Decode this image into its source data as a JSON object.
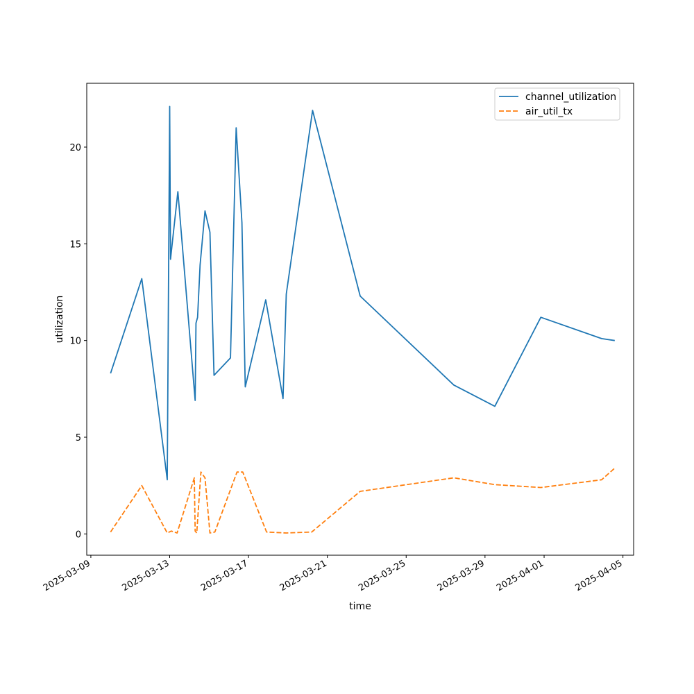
{
  "chart_data": {
    "type": "line",
    "title": "",
    "xlabel": "time",
    "ylabel": "utilization",
    "xlim": [
      "2025-03-08T19:00",
      "2025-04-05T13:00"
    ],
    "ylim": [
      -1.1,
      23.3
    ],
    "x_ticks": [
      "2025-03-09",
      "2025-03-13",
      "2025-03-17",
      "2025-03-21",
      "2025-03-25",
      "2025-03-29",
      "2025-04-01",
      "2025-04-05"
    ],
    "y_ticks": [
      0,
      5,
      10,
      15,
      20
    ],
    "grid": false,
    "legend_position": "upper-right",
    "series": [
      {
        "name": "channel_utilization",
        "color": "#1f77b4",
        "dash": "solid",
        "points": [
          [
            "2025-03-10T00:00",
            8.3
          ],
          [
            "2025-03-11T14:00",
            13.2
          ],
          [
            "2025-03-12T21:00",
            2.8
          ],
          [
            "2025-03-13T00:00",
            22.1
          ],
          [
            "2025-03-13T01:00",
            14.2
          ],
          [
            "2025-03-13T10:00",
            17.7
          ],
          [
            "2025-03-14T07:00",
            6.9
          ],
          [
            "2025-03-14T08:00",
            10.9
          ],
          [
            "2025-03-14T10:00",
            11.2
          ],
          [
            "2025-03-14T13:00",
            13.9
          ],
          [
            "2025-03-14T19:00",
            16.7
          ],
          [
            "2025-03-15T01:00",
            15.6
          ],
          [
            "2025-03-15T06:00",
            8.2
          ],
          [
            "2025-03-16T02:00",
            9.1
          ],
          [
            "2025-03-16T09:00",
            21.0
          ],
          [
            "2025-03-16T16:00",
            16.1
          ],
          [
            "2025-03-16T20:00",
            7.6
          ],
          [
            "2025-03-17T21:00",
            12.1
          ],
          [
            "2025-03-18T18:00",
            7.0
          ],
          [
            "2025-03-18T22:00",
            12.4
          ],
          [
            "2025-03-20T06:00",
            21.9
          ],
          [
            "2025-03-22T16:00",
            12.3
          ],
          [
            "2025-03-27T10:00",
            7.7
          ],
          [
            "2025-03-29T12:00",
            6.6
          ],
          [
            "2025-03-31T20:00",
            11.2
          ],
          [
            "2025-04-03T22:00",
            10.1
          ],
          [
            "2025-04-04T14:00",
            10.0
          ]
        ]
      },
      {
        "name": "air_util_tx",
        "color": "#ff7f0e",
        "dash": "dashed",
        "points": [
          [
            "2025-03-10T00:00",
            0.1
          ],
          [
            "2025-03-11T14:00",
            2.5
          ],
          [
            "2025-03-12T21:00",
            0.05
          ],
          [
            "2025-03-13T02:00",
            0.15
          ],
          [
            "2025-03-13T09:00",
            0.05
          ],
          [
            "2025-03-14T06:00",
            2.9
          ],
          [
            "2025-03-14T07:00",
            0.15
          ],
          [
            "2025-03-14T09:00",
            0.05
          ],
          [
            "2025-03-14T14:00",
            3.2
          ],
          [
            "2025-03-14T19:00",
            2.9
          ],
          [
            "2025-03-15T01:00",
            0.05
          ],
          [
            "2025-03-15T07:00",
            0.1
          ],
          [
            "2025-03-16T10:00",
            3.2
          ],
          [
            "2025-03-16T17:00",
            3.2
          ],
          [
            "2025-03-17T22:00",
            0.1
          ],
          [
            "2025-03-18T22:00",
            0.05
          ],
          [
            "2025-03-20T05:00",
            0.1
          ],
          [
            "2025-03-22T16:00",
            2.2
          ],
          [
            "2025-03-27T10:00",
            2.9
          ],
          [
            "2025-03-29T12:00",
            2.55
          ],
          [
            "2025-03-31T20:00",
            2.4
          ],
          [
            "2025-04-03T22:00",
            2.8
          ],
          [
            "2025-04-04T14:00",
            3.4
          ]
        ]
      }
    ]
  }
}
